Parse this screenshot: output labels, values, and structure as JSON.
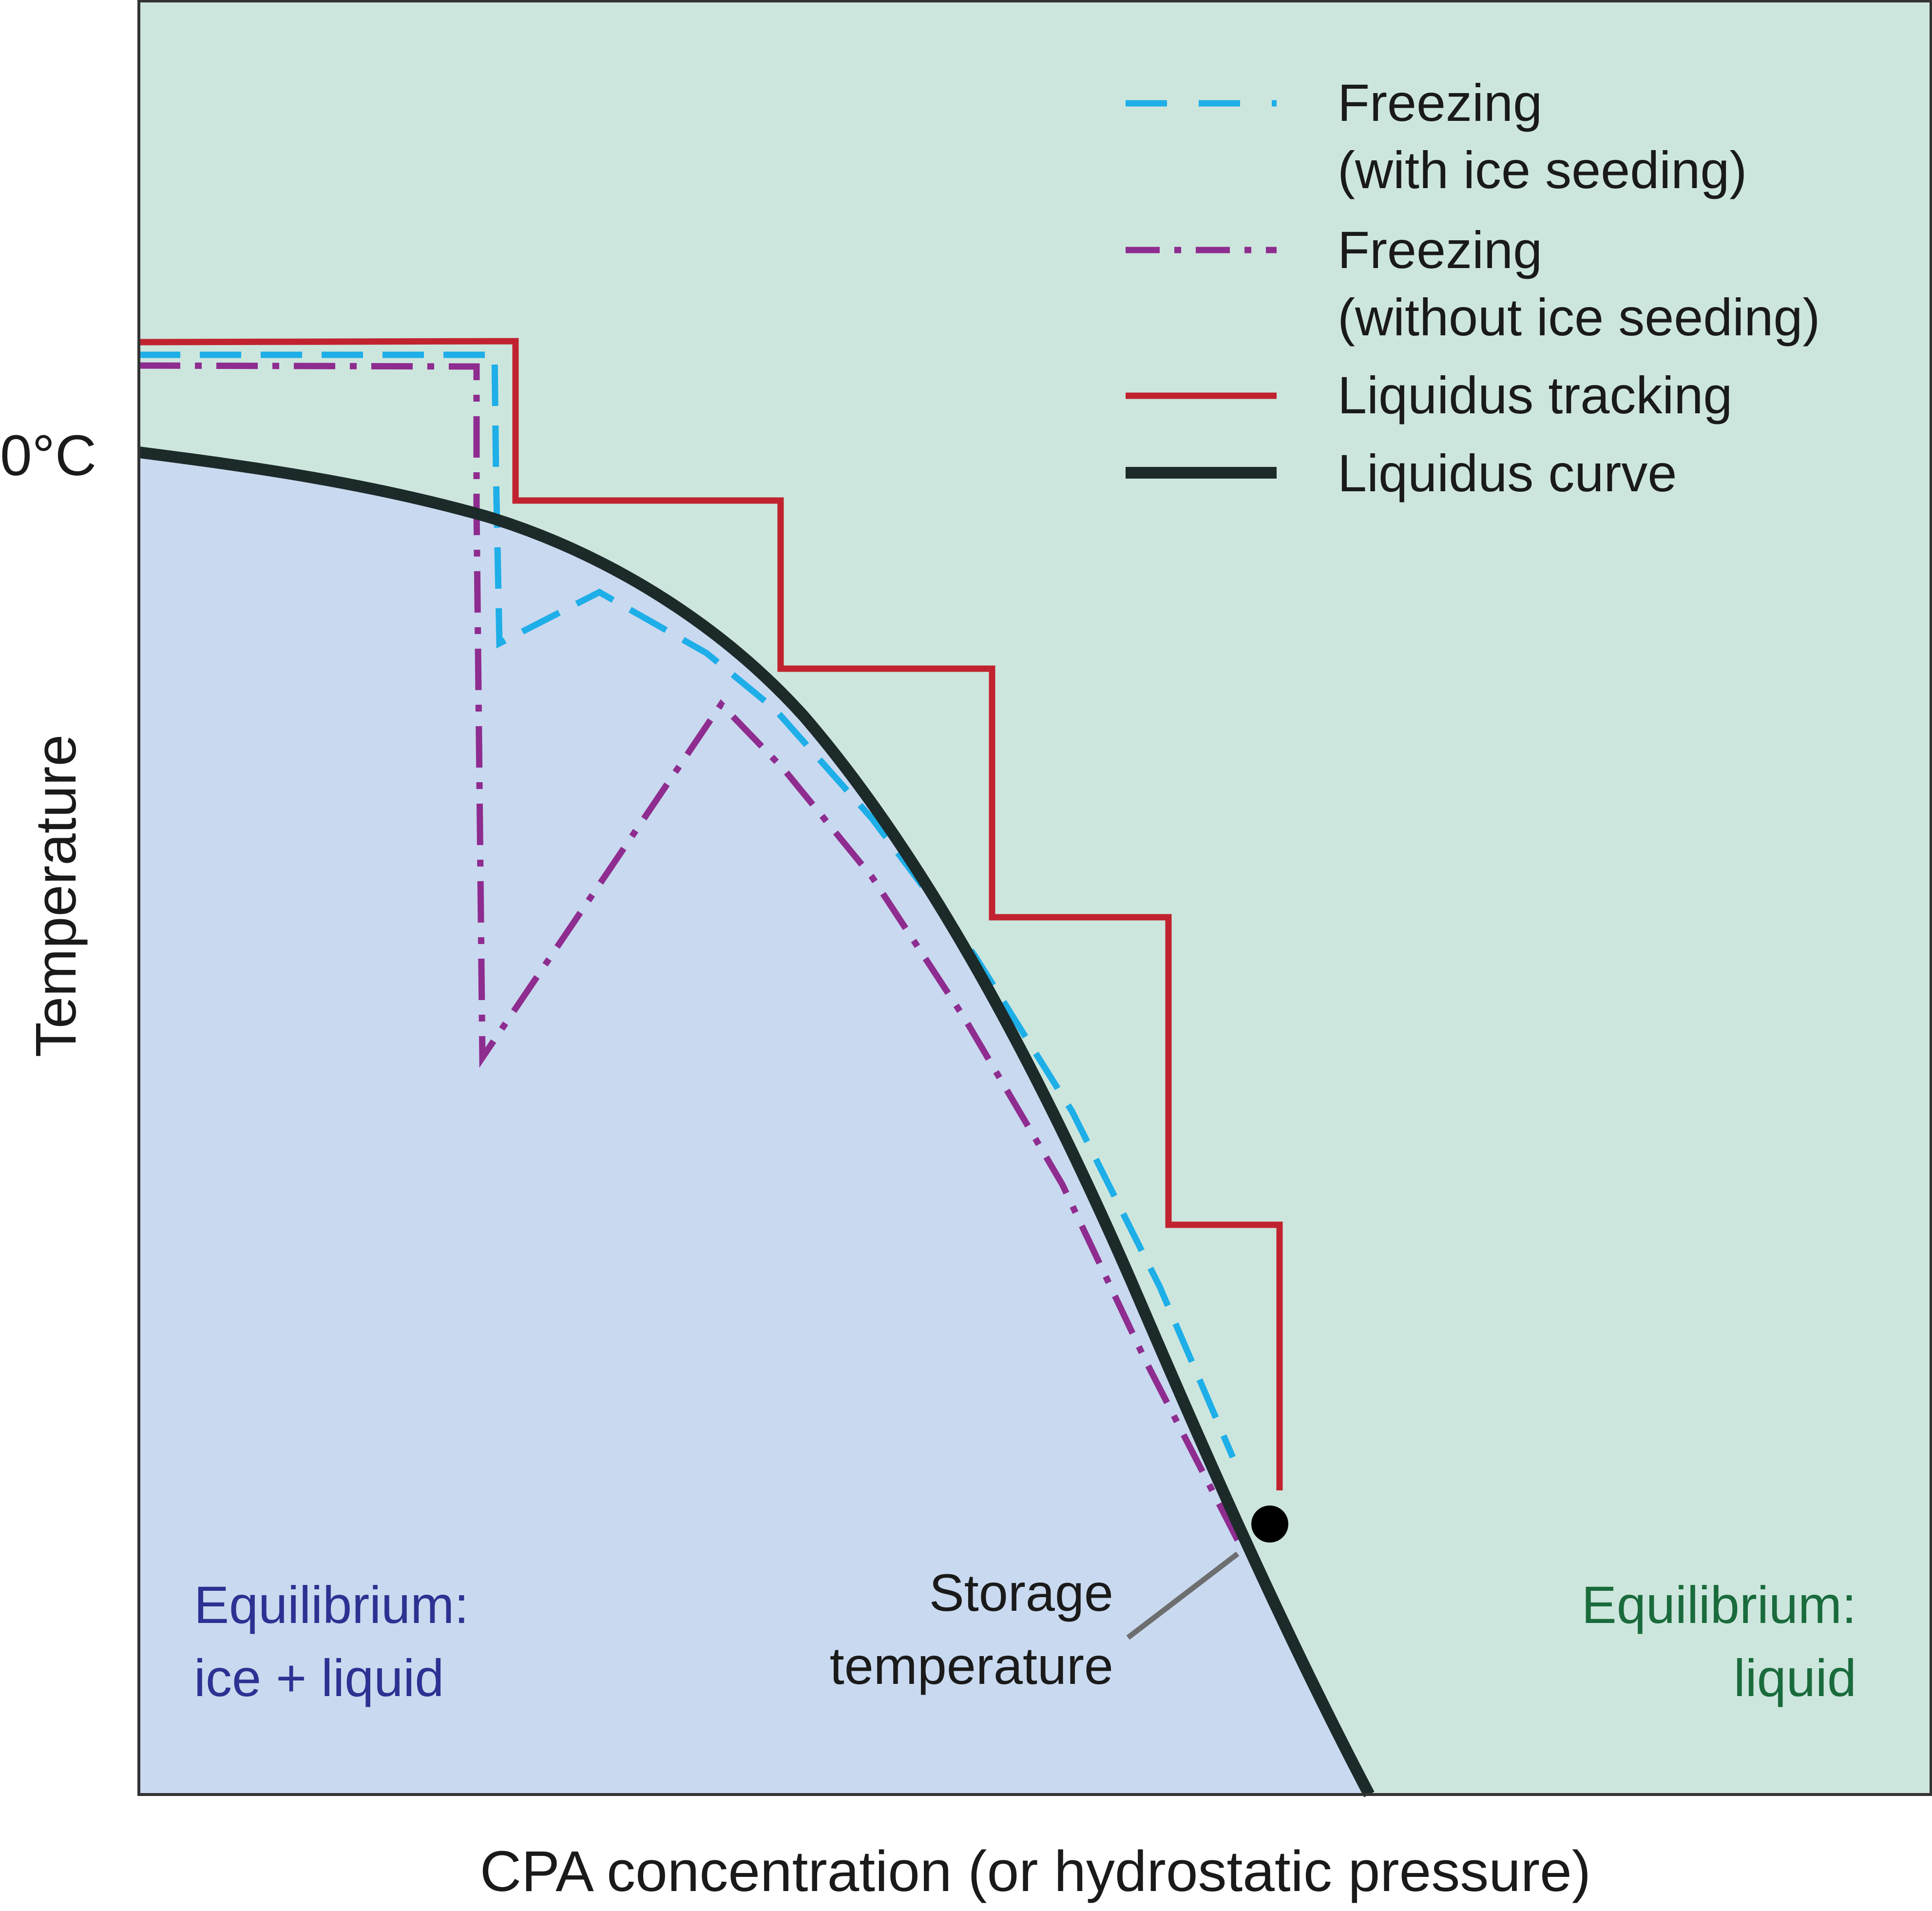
{
  "colors": {
    "liquid_region": "#cde6dd",
    "ice_liquid_region": "#c9d9ef",
    "liquidus_curve": "#1d2a2a",
    "freezing_seeded": "#1eaee8",
    "freezing_unseeded": "#8e2c90",
    "liquidus_tracking": "#c0232f",
    "label_ice_liquid": "#2e3192",
    "label_liquid": "#1a6b3c",
    "frame": "#333333",
    "leader": "#6d6e70",
    "text": "#1a1a1a"
  },
  "axes": {
    "x_label": "CPA concentration (or hydrostatic pressure)",
    "y_label": "Temperature",
    "y_tick_zero": "0°C"
  },
  "legend": {
    "items": [
      {
        "key": "freezing_seeded",
        "line_style": "dashed",
        "lines": [
          "Freezing",
          "(with ice seeding)"
        ]
      },
      {
        "key": "freezing_unseeded",
        "line_style": "dash-dot",
        "lines": [
          "Freezing",
          "(without ice seeding)"
        ]
      },
      {
        "key": "liquidus_tracking",
        "line_style": "solid",
        "lines": [
          "Liquidus tracking"
        ]
      },
      {
        "key": "liquidus_curve",
        "line_style": "solid-thick",
        "lines": [
          "Liquidus curve"
        ]
      }
    ]
  },
  "regions": {
    "ice_liquid": [
      "Equilibrium:",
      "ice + liquid"
    ],
    "liquid": [
      "Equilibrium:",
      "liquid"
    ]
  },
  "annotations": {
    "storage_temperature": [
      "Storage",
      "temperature"
    ]
  }
}
